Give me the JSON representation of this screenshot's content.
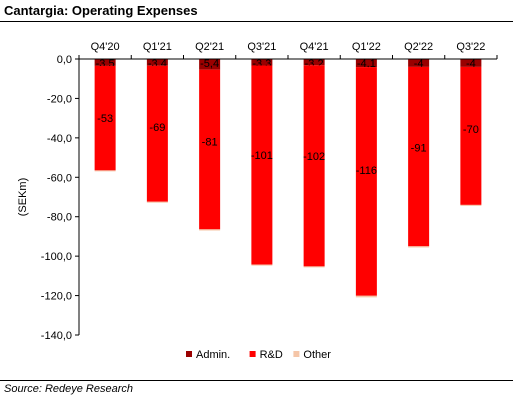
{
  "title": "Cantargia: Operating Expenses",
  "source": "Source: Redeye Research",
  "chart_data": {
    "type": "bar",
    "stacked": true,
    "categories": [
      "Q4'20",
      "Q1'21",
      "Q2'21",
      "Q3'21",
      "Q4'21",
      "Q1'22",
      "Q2'22",
      "Q3'22"
    ],
    "series": [
      {
        "name": "Admin.",
        "color": "#9a0000",
        "values": [
          -3.5,
          -3.4,
          -5.4,
          -3.3,
          -3.2,
          -4.1,
          -4,
          -4
        ],
        "labels": [
          "-3,5",
          "-3,4",
          "-5,4",
          "-3,3",
          "-3,2",
          "-4,1",
          "-4",
          "-4"
        ]
      },
      {
        "name": "R&D",
        "color": "#ff0000",
        "values": [
          -53,
          -69,
          -81,
          -101,
          -102,
          -116,
          -91,
          -70
        ],
        "labels": [
          "-53",
          "-69",
          "-81",
          "-101",
          "-102",
          "-116",
          "-91",
          "-70"
        ]
      },
      {
        "name": "Other",
        "color": "#f5c6a8",
        "values": [
          -0.5,
          -0.5,
          -0.6,
          -0.5,
          -0.5,
          -0.8,
          -0.6,
          -0.5
        ]
      }
    ],
    "ylabel": "(SEKm)",
    "xlabel": "",
    "ylim": [
      -140,
      0
    ],
    "yticks": [
      "0,0",
      "-20,0",
      "-40,0",
      "-60,0",
      "-80,0",
      "-100,0",
      "-120,0",
      "-140,0"
    ],
    "xaxis_position": "top",
    "legend_position": "bottom-center",
    "grid": false
  }
}
